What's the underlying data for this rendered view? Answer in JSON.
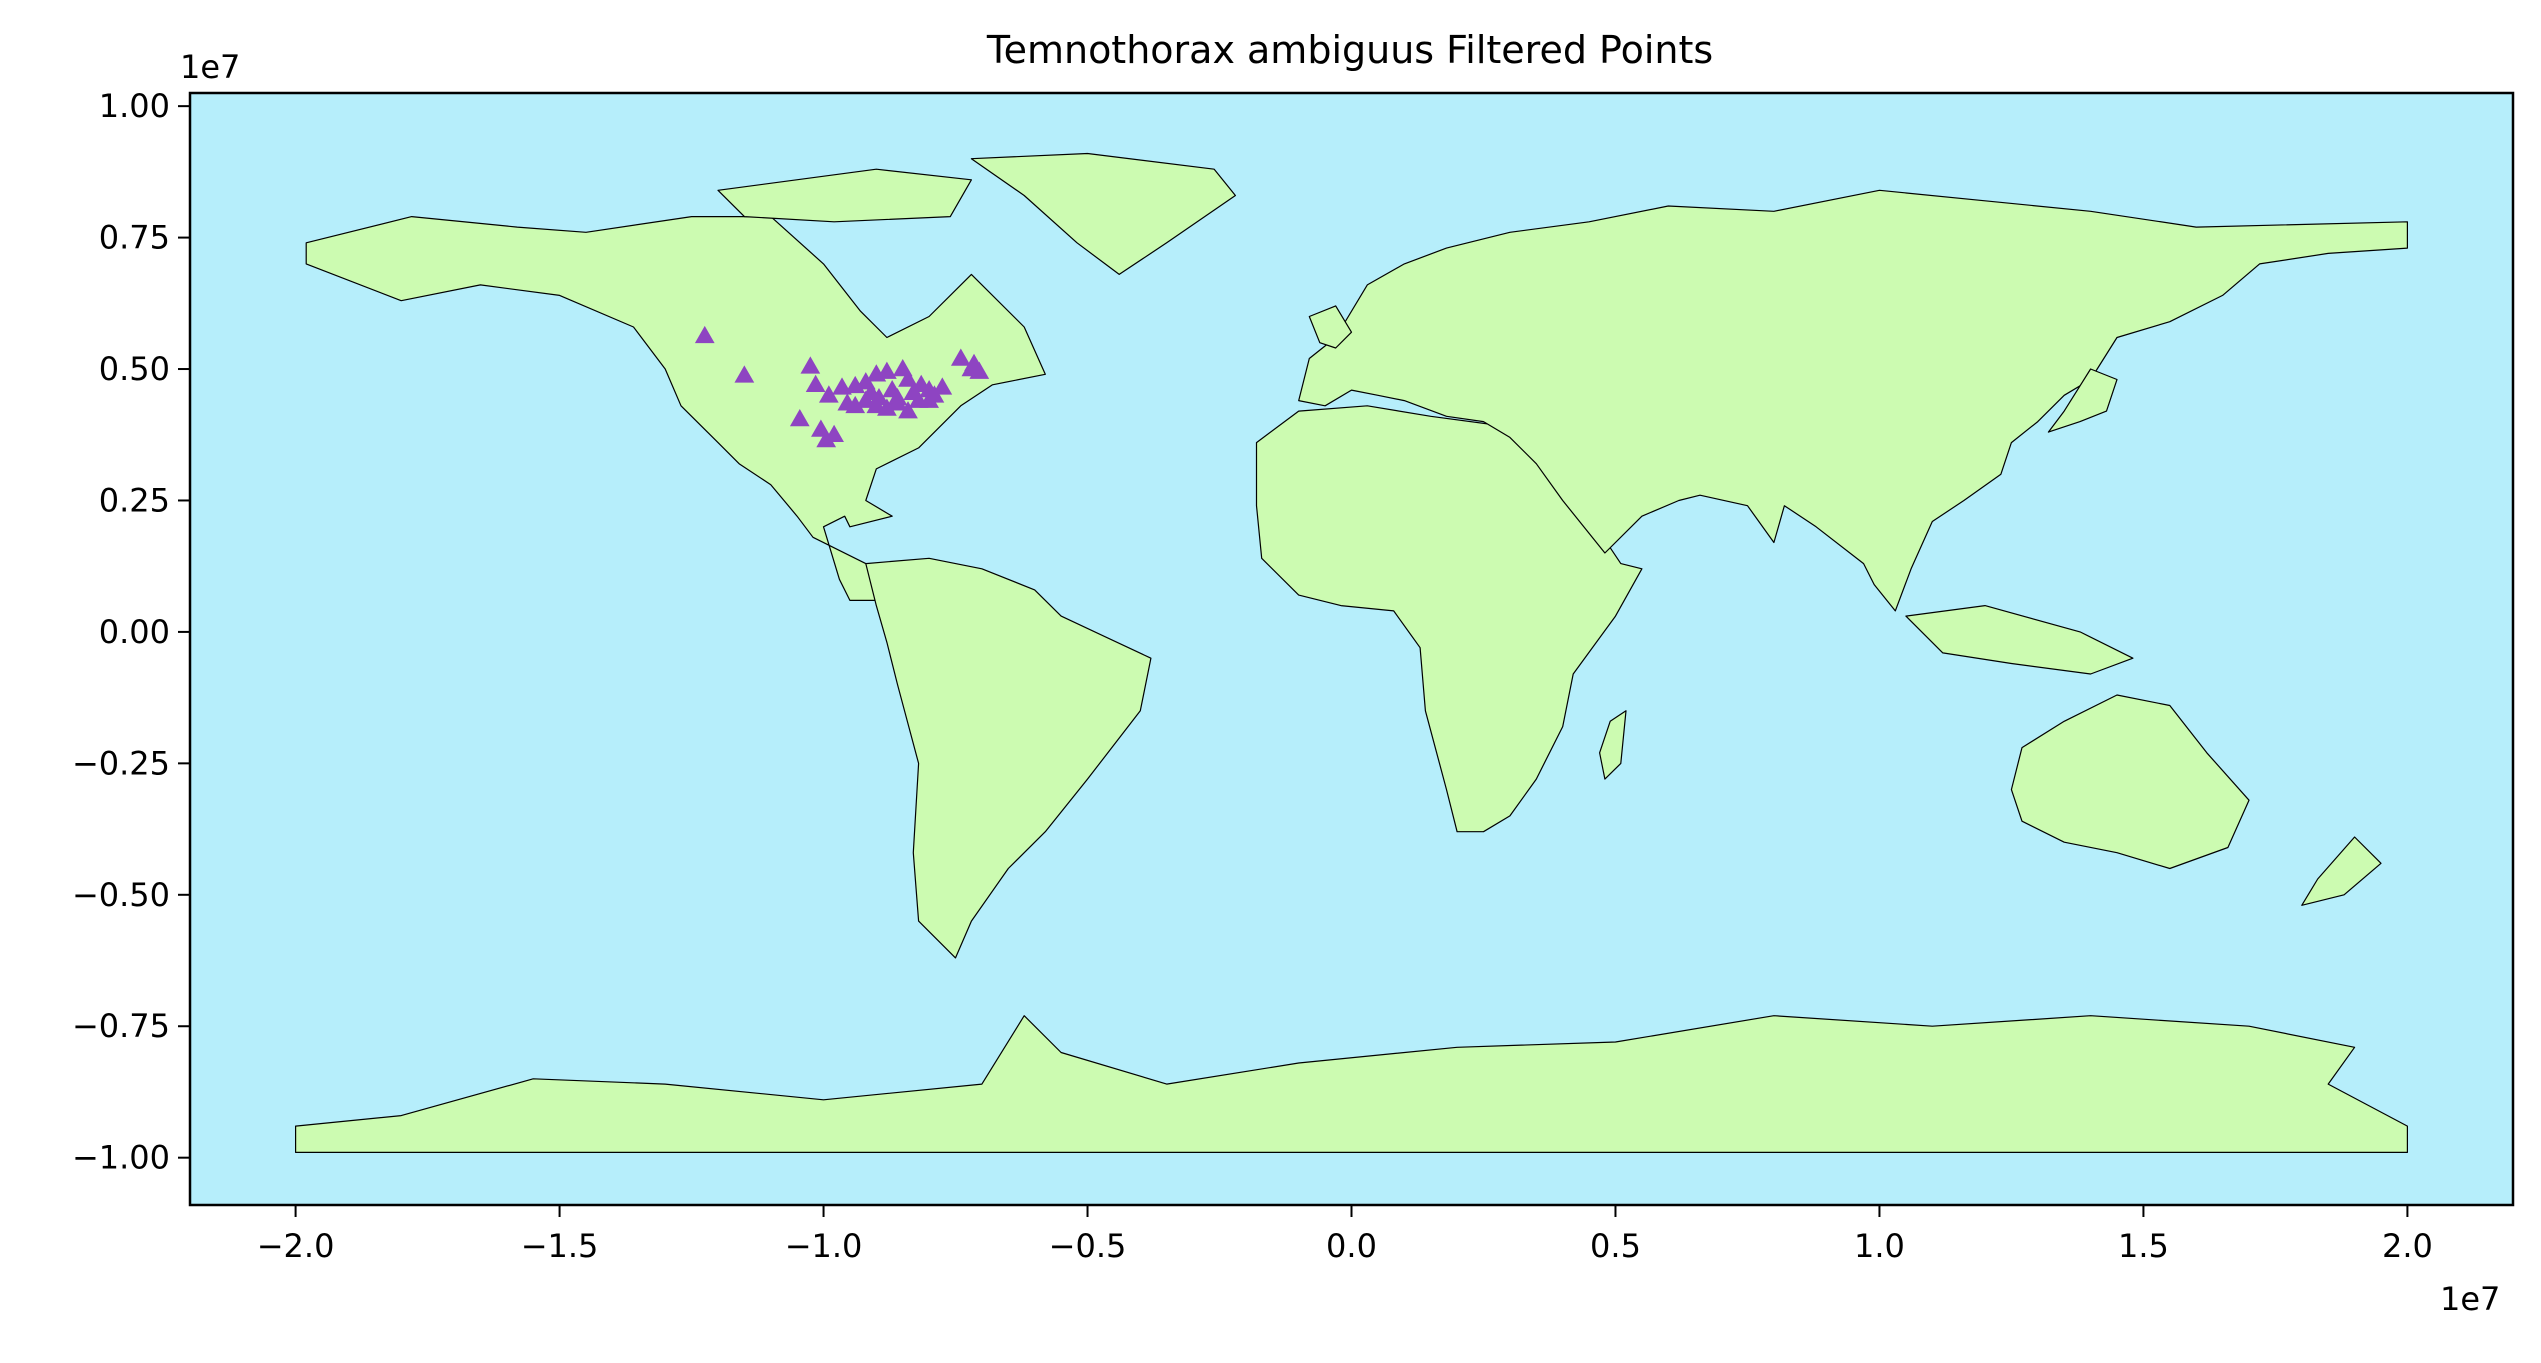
{
  "chart_data": {
    "type": "scatter",
    "title": "Temnothorax ambiguus Filtered Points",
    "xlabel": "",
    "ylabel": "",
    "x_offset_label": "1e7",
    "y_offset_label": "1e7",
    "xlim": [
      -2.2,
      2.2
    ],
    "ylim": [
      -1.09,
      1.025
    ],
    "x_ticks": [
      -2.0,
      -1.5,
      -1.0,
      -0.5,
      0.0,
      0.5,
      1.0,
      1.5,
      2.0
    ],
    "x_tick_labels": [
      "−2.0",
      "−1.5",
      "−1.0",
      "−0.5",
      "0.0",
      "0.5",
      "1.0",
      "1.5",
      "2.0"
    ],
    "y_ticks": [
      1.0,
      0.75,
      0.5,
      0.25,
      0.0,
      -0.25,
      -0.5,
      -0.75,
      -1.0
    ],
    "y_tick_labels": [
      "1.00",
      "0.75",
      "0.50",
      "0.25",
      "0.00",
      "−0.25",
      "−0.50",
      "−0.75",
      "−1.00"
    ],
    "grid": false,
    "colors": {
      "ocean": "#b6eefb",
      "land": "#ccfbb1",
      "border": "#000000",
      "marker": "#8e44c2"
    },
    "marker_shape": "triangle",
    "series": [
      {
        "x": [
          -1.225,
          -1.15,
          -1.025,
          -1.015,
          -0.99,
          -0.965,
          -0.955,
          -0.94,
          -0.92,
          -0.91,
          -0.9,
          -0.895,
          -0.88,
          -0.87,
          -0.86,
          -0.85,
          -0.84,
          -0.83,
          -0.82,
          -0.815,
          -0.8,
          -0.79,
          -0.775,
          -0.9,
          -0.88,
          -0.86,
          -0.84,
          -0.92,
          -0.94,
          -1.045,
          -1.005,
          -0.98,
          -0.995,
          -0.8,
          -0.74,
          -0.715,
          -0.705,
          -0.72
        ],
        "y": [
          0.563,
          0.488,
          0.505,
          0.47,
          0.45,
          0.465,
          0.435,
          0.468,
          0.475,
          0.455,
          0.49,
          0.445,
          0.495,
          0.46,
          0.445,
          0.5,
          0.48,
          0.455,
          0.44,
          0.47,
          0.46,
          0.45,
          0.465,
          0.43,
          0.425,
          0.435,
          0.42,
          0.44,
          0.43,
          0.405,
          0.385,
          0.375,
          0.365,
          0.44,
          0.52,
          0.51,
          0.495,
          0.5
        ]
      }
    ]
  }
}
